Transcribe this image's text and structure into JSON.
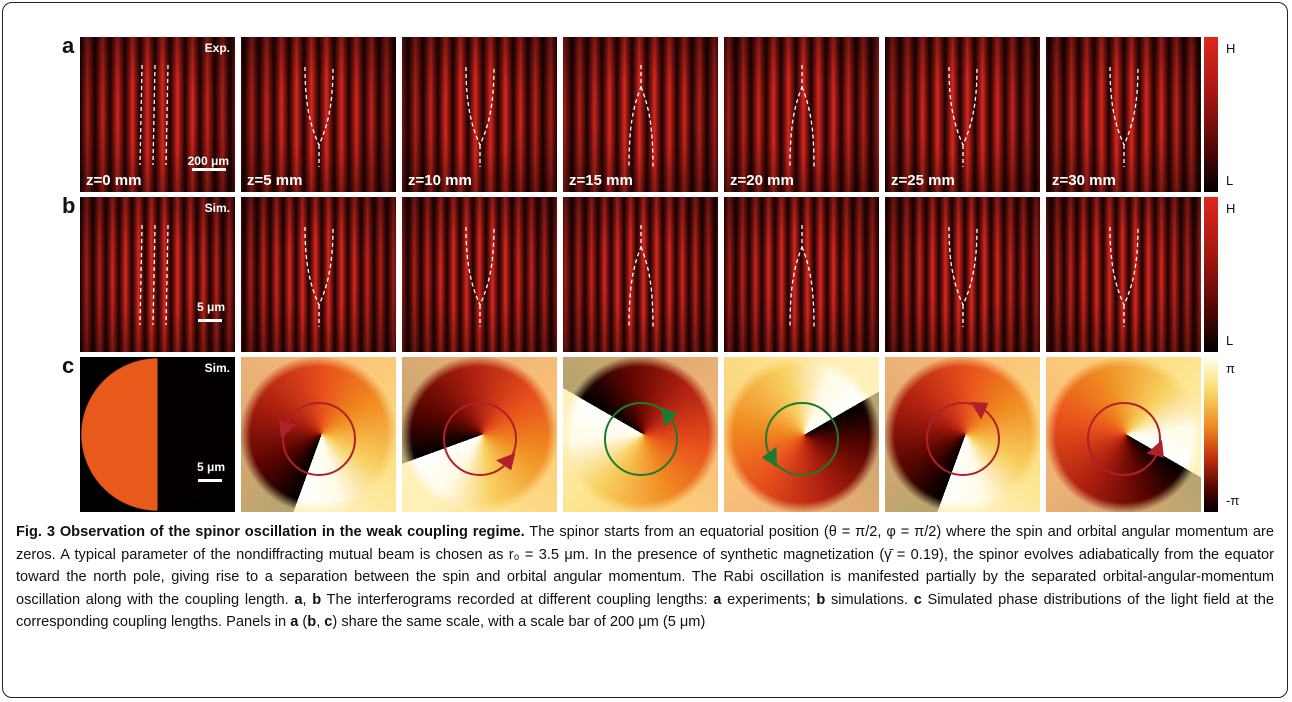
{
  "figure": {
    "row_labels": [
      "a",
      "b",
      "c"
    ],
    "row_tags": [
      "Exp.",
      "Sim.",
      "Sim."
    ],
    "z_labels": [
      "z=0 mm",
      "z=5 mm",
      "z=10 mm",
      "z=15 mm",
      "z=20 mm",
      "z=25 mm",
      "z=30 mm"
    ],
    "scale_bars": [
      "200 μm",
      "5 μm",
      "5 μm"
    ],
    "colorbars": [
      {
        "top": "H",
        "bottom": "L"
      },
      {
        "top": "H",
        "bottom": "L"
      },
      {
        "top": "π",
        "bottom": "-π"
      }
    ]
  },
  "caption": {
    "segments": [
      {
        "text": "Fig. 3 Observation of the spinor oscillation in the weak coupling regime.",
        "bold": true
      },
      {
        "text": " The spinor starts from an equatorial position (θ = π/2, φ = π/2) where the spin and orbital angular momentum are zeros. A typical parameter of the nondiffracting mutual beam is chosen as r₀ = 3.5 μm. In the presence of synthetic magnetization (γ̄ = 0.19), the spinor evolves adiabatically from the equator toward the north pole, giving rise to a separation between the spin and orbital angular momentum. The Rabi oscillation is manifested partially by the separated orbital-angular-momentum oscillation along with the coupling length. ",
        "bold": false
      },
      {
        "text": "a",
        "bold": true
      },
      {
        "text": ", ",
        "bold": false
      },
      {
        "text": "b",
        "bold": true
      },
      {
        "text": " The interferograms recorded at different coupling lengths: ",
        "bold": false
      },
      {
        "text": "a",
        "bold": true
      },
      {
        "text": " experiments; ",
        "bold": false
      },
      {
        "text": "b",
        "bold": true
      },
      {
        "text": " simulations. ",
        "bold": false
      },
      {
        "text": "c",
        "bold": true
      },
      {
        "text": " Simulated phase distributions of the light field at the corresponding coupling lengths. Panels in ",
        "bold": false
      },
      {
        "text": "a",
        "bold": true
      },
      {
        "text": " (",
        "bold": false
      },
      {
        "text": "b",
        "bold": true
      },
      {
        "text": ", ",
        "bold": false
      },
      {
        "text": "c",
        "bold": true
      },
      {
        "text": ") share the same scale, with a scale bar of 200 μm (5 μm)",
        "bold": false
      }
    ]
  }
}
